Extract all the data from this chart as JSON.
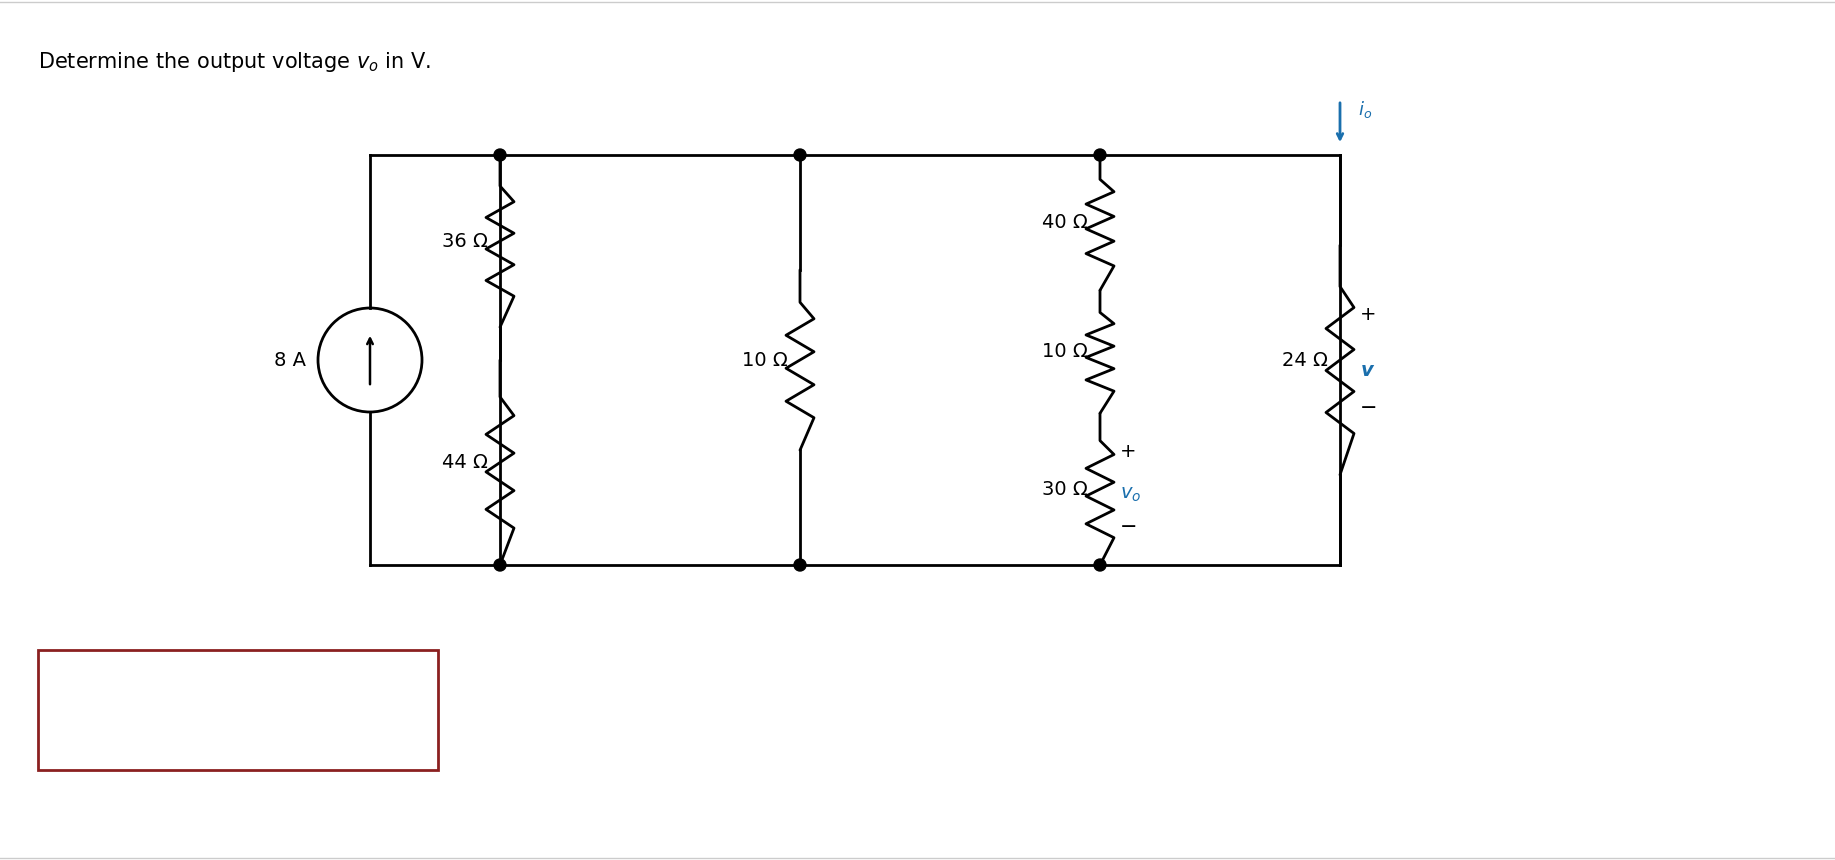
{
  "title": "Determine the output voltage $v_o$ in V.",
  "bg_color": "#ffffff",
  "line_color": "#000000",
  "blue_color": "#1a6fad",
  "red_box_color": "#8B2020",
  "wire_lw": 2.0,
  "resistor_36": "36 Ω",
  "resistor_44": "44 Ω",
  "resistor_10a": "10 Ω",
  "resistor_10b": "10 Ω",
  "resistor_40": "40 Ω",
  "resistor_24": "24 Ω",
  "resistor_30": "30 Ω",
  "current_source_label": "8 A",
  "label_v": "$\\bm{v}$",
  "label_io": "$i_o$",
  "label_vo": "$v_o$",
  "label_plus": "+",
  "label_minus": "−",
  "font_main": 15,
  "font_label": 14,
  "font_small": 13
}
